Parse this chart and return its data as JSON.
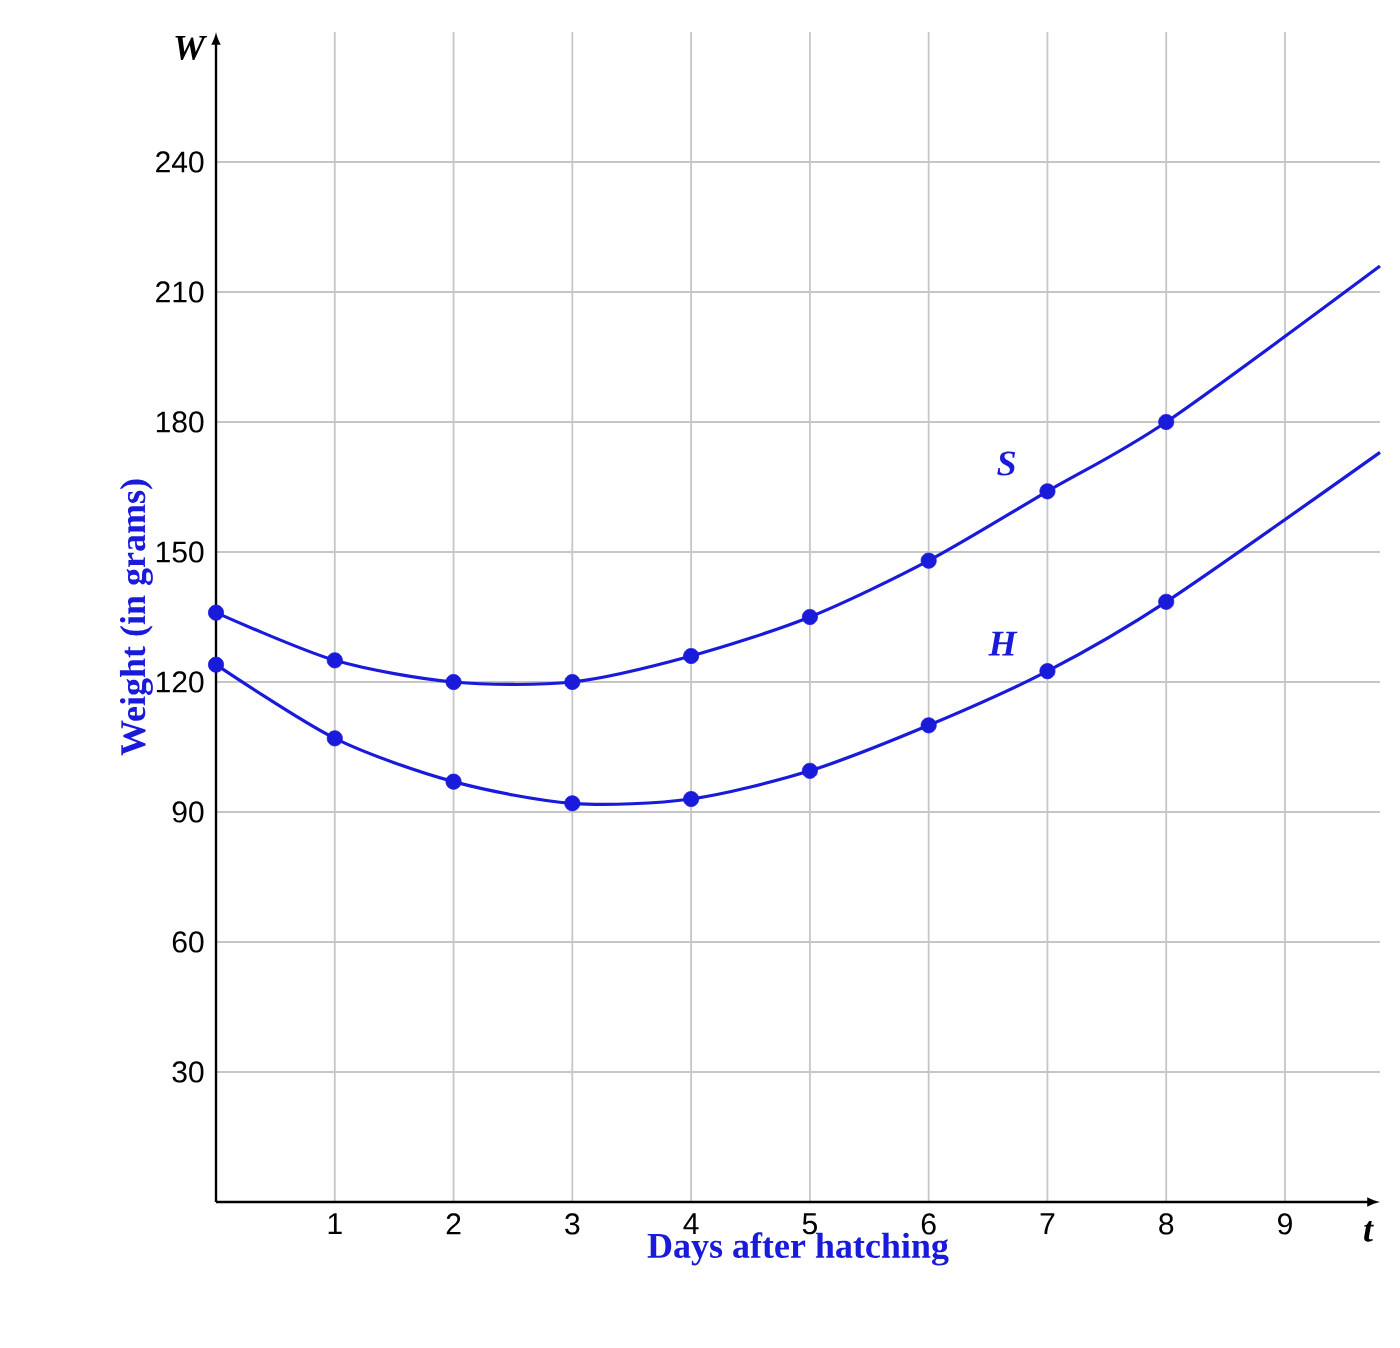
{
  "chart_data": {
    "type": "line",
    "xlabel": "Days after hatching",
    "ylabel": "Weight (in grams)",
    "annotations": [
      "W",
      "t"
    ],
    "xlim": [
      0,
      9.8
    ],
    "ylim": [
      0,
      270
    ],
    "xticks": [
      1,
      2,
      3,
      4,
      5,
      6,
      7,
      8,
      9
    ],
    "yticks": [
      30,
      60,
      90,
      120,
      150,
      180,
      210,
      240
    ],
    "grid": true,
    "series": [
      {
        "name": "S",
        "color": "#1a1adb",
        "marker": "none",
        "x": [
          0,
          1,
          2,
          3,
          4,
          5,
          6,
          7,
          8,
          9.8
        ],
        "values": [
          136,
          125,
          120,
          120,
          126,
          135,
          148,
          164,
          180,
          216
        ]
      },
      {
        "name": "H",
        "color": "#1a1adb",
        "marker": "none",
        "x": [
          0,
          1,
          2,
          3,
          4,
          5,
          6,
          7,
          8,
          9.8
        ],
        "values": [
          124,
          107,
          97,
          92,
          93,
          99.5,
          110,
          122.5,
          138.5,
          173
        ]
      },
      {
        "type": "scatter",
        "color": "#1a1adb",
        "marker": "circle",
        "x": [
          0,
          1,
          2,
          3,
          4,
          5,
          6,
          7,
          8
        ],
        "values": [
          136,
          125,
          120,
          120,
          126,
          135,
          148,
          164,
          180
        ]
      },
      {
        "type": "scatter",
        "color": "#1a1adb",
        "marker": "circle",
        "x": [
          0,
          1,
          2,
          3,
          4,
          5,
          6,
          7,
          8
        ],
        "values": [
          124,
          107,
          97,
          92,
          93,
          99.5,
          110,
          122.5,
          138.5
        ]
      }
    ]
  }
}
